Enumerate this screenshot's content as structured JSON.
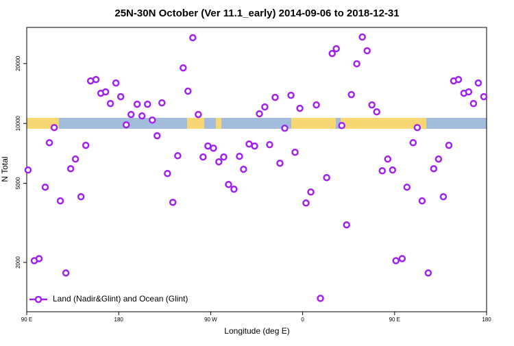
{
  "chart_data": {
    "type": "scatter",
    "title": "25N-30N October (Ver 11.1_early)   2014-09-06 to 2018-12-31",
    "xlabel": "Longitude (deg E)",
    "ylabel": "N Total",
    "xlim": [
      90,
      540
    ],
    "xticks": [
      {
        "value": 90,
        "label": "90 E"
      },
      180,
      {
        "value": 270,
        "label": "90 W"
      },
      {
        "value": 360,
        "label": "0"
      },
      {
        "value": 450,
        "label": "90 E"
      },
      {
        "value": 540,
        "label": "180"
      }
    ],
    "ylim": [
      1130,
      30400
    ],
    "yticks": [
      2000,
      5000,
      10000,
      20000
    ],
    "ylog": true,
    "legend": "lower left",
    "series": [
      {
        "name": "Land (Nadir&Glint) and Ocean (Glint)",
        "color": "#a020f0",
        "x": [
          91.3,
          97.4,
          102.1,
          108.1,
          112.2,
          116.9,
          122.9,
          128.3,
          133.0,
          137.7,
          143.1,
          147.8,
          152.5,
          157.8,
          162.5,
          167.2,
          171.9,
          177.3,
          182.0,
          187.4,
          192.1,
          198.1,
          202.8,
          208.2,
          212.9,
          217.6,
          222.3,
          227.7,
          233.0,
          237.8,
          243.1,
          247.8,
          252.5,
          257.9,
          262.6,
          267.3,
          272.7,
          278.0,
          282.8,
          287.5,
          292.8,
          298.2,
          302.2,
          307.6,
          313.0,
          317.7,
          323.0,
          327.7,
          333.1,
          337.8,
          342.5,
          348.6,
          352.6,
          357.3,
          363.3,
          368.0,
          373.4,
          377.4,
          383.5,
          388.9,
          392.9,
          398.3,
          403.0,
          407.7,
          413.0,
          418.4,
          423.1,
          427.8,
          432.5,
          437.9,
          443.3,
          448.0,
          451.3,
          457.4,
          462.1,
          468.1,
          472.2,
          476.9,
          482.9,
          488.3,
          493.0,
          497.7,
          503.1,
          507.8,
          512.5,
          517.8,
          522.5,
          527.2,
          531.9,
          537.3
        ],
        "values": [
          5830,
          2040,
          2090,
          4780,
          8000,
          9530,
          4080,
          1770,
          5920,
          6620,
          4280,
          7760,
          16360,
          16620,
          14180,
          14410,
          12590,
          15970,
          13630,
          9840,
          11090,
          12490,
          10910,
          12490,
          10400,
          8670,
          12690,
          5600,
          4010,
          6880,
          19020,
          14530,
          26980,
          11090,
          6780,
          7700,
          7510,
          6410,
          6780,
          4930,
          4670,
          6830,
          5880,
          7880,
          7700,
          11180,
          12100,
          7820,
          13520,
          6310,
          9460,
          13850,
          7160,
          11910,
          3980,
          4520,
          12390,
          1320,
          5340,
          22470,
          23760,
          9760,
          3090,
          13960,
          19950,
          27200,
          23200,
          12390,
          11440,
          5780,
          6620,
          5830,
          2040,
          2090,
          4780,
          8000,
          9530,
          4080,
          1770,
          5920,
          6620,
          4280,
          7760,
          16360,
          16620,
          14180,
          14410,
          12590,
          15970,
          13630
        ]
      }
    ]
  }
}
